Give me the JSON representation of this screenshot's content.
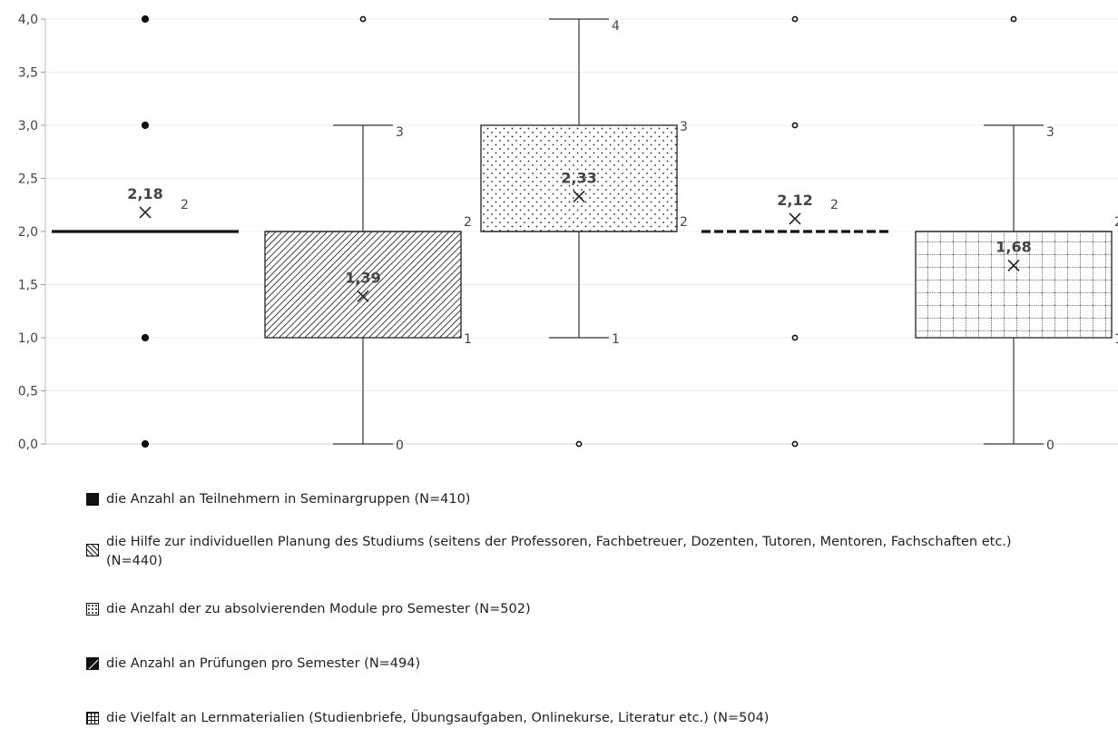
{
  "chart_data": {
    "type": "boxplot",
    "ylim": [
      0,
      4
    ],
    "yticks": [
      "0,0",
      "0,5",
      "1,0",
      "1,5",
      "2,0",
      "2,5",
      "3,0",
      "3,5",
      "4,0"
    ],
    "grid": true,
    "legend_position": "bottom",
    "series": [
      {
        "name": "die Anzahl an Teilnehmern in Seminargruppen (N=410)",
        "min": 2,
        "q1": 2,
        "median": 2,
        "q3": 2,
        "max": 2,
        "mean": 2.18,
        "mean_label": "2,18",
        "outliers": [
          0,
          1,
          3,
          4
        ],
        "box_labels": [
          "2"
        ],
        "pattern": "solid"
      },
      {
        "name": "die Hilfe zur individuellen Planung des Studiums (seitens der Professoren, Fachbetreuer, Dozenten, Tutoren, Mentoren, Fachschaften etc.) (N=440)",
        "min": 0,
        "q1": 1,
        "median": 2,
        "q3": 2,
        "max": 3,
        "mean": 1.39,
        "mean_label": "1,39",
        "outliers": [
          4
        ],
        "box_labels": [
          "3",
          "2",
          "1",
          "0"
        ],
        "pattern": "hatch"
      },
      {
        "name": "die Anzahl der zu absolvierenden Module pro Semester (N=502)",
        "min": 1,
        "q1": 2,
        "median": 2,
        "q3": 3,
        "max": 4,
        "mean": 2.33,
        "mean_label": "2,33",
        "outliers": [
          0
        ],
        "box_labels": [
          "4",
          "3",
          "2",
          "1"
        ],
        "pattern": "dots"
      },
      {
        "name": "die Anzahl an Prüfungen pro Semester (N=494)",
        "min": 2,
        "q1": 2,
        "median": 2,
        "q3": 2,
        "max": 2,
        "mean": 2.12,
        "mean_label": "2,12",
        "outliers": [
          0,
          1,
          3,
          4
        ],
        "box_labels": [
          "2"
        ],
        "pattern": "dashed"
      },
      {
        "name": "die Vielfalt an Lernmaterialien (Studienbriefe, Übungsaufgaben, Onlinekurse, Literatur etc.) (N=504)",
        "min": 0,
        "q1": 1,
        "median": 2,
        "q3": 2,
        "max": 3,
        "mean": 1.68,
        "mean_label": "1,68",
        "outliers": [
          4
        ],
        "box_labels": [
          "3",
          "2",
          "1",
          "0"
        ],
        "pattern": "grid"
      }
    ]
  },
  "legend": {
    "items": [
      {
        "label": "die Anzahl an Teilnehmern in Seminargruppen (N=410)"
      },
      {
        "label": "die Hilfe zur individuellen Planung des Studiums (seitens der Professoren, Fachbetreuer, Dozenten, Tutoren, Mentoren, Fachschaften etc.) (N=440)"
      },
      {
        "label": "die Anzahl der zu absolvierenden Module pro Semester (N=502)"
      },
      {
        "label": "die Anzahl an Prüfungen pro Semester (N=494)"
      },
      {
        "label": "die Vielfalt an Lernmaterialien (Studienbriefe, Übungsaufgaben, Onlinekurse, Literatur etc.) (N=504)"
      }
    ]
  }
}
